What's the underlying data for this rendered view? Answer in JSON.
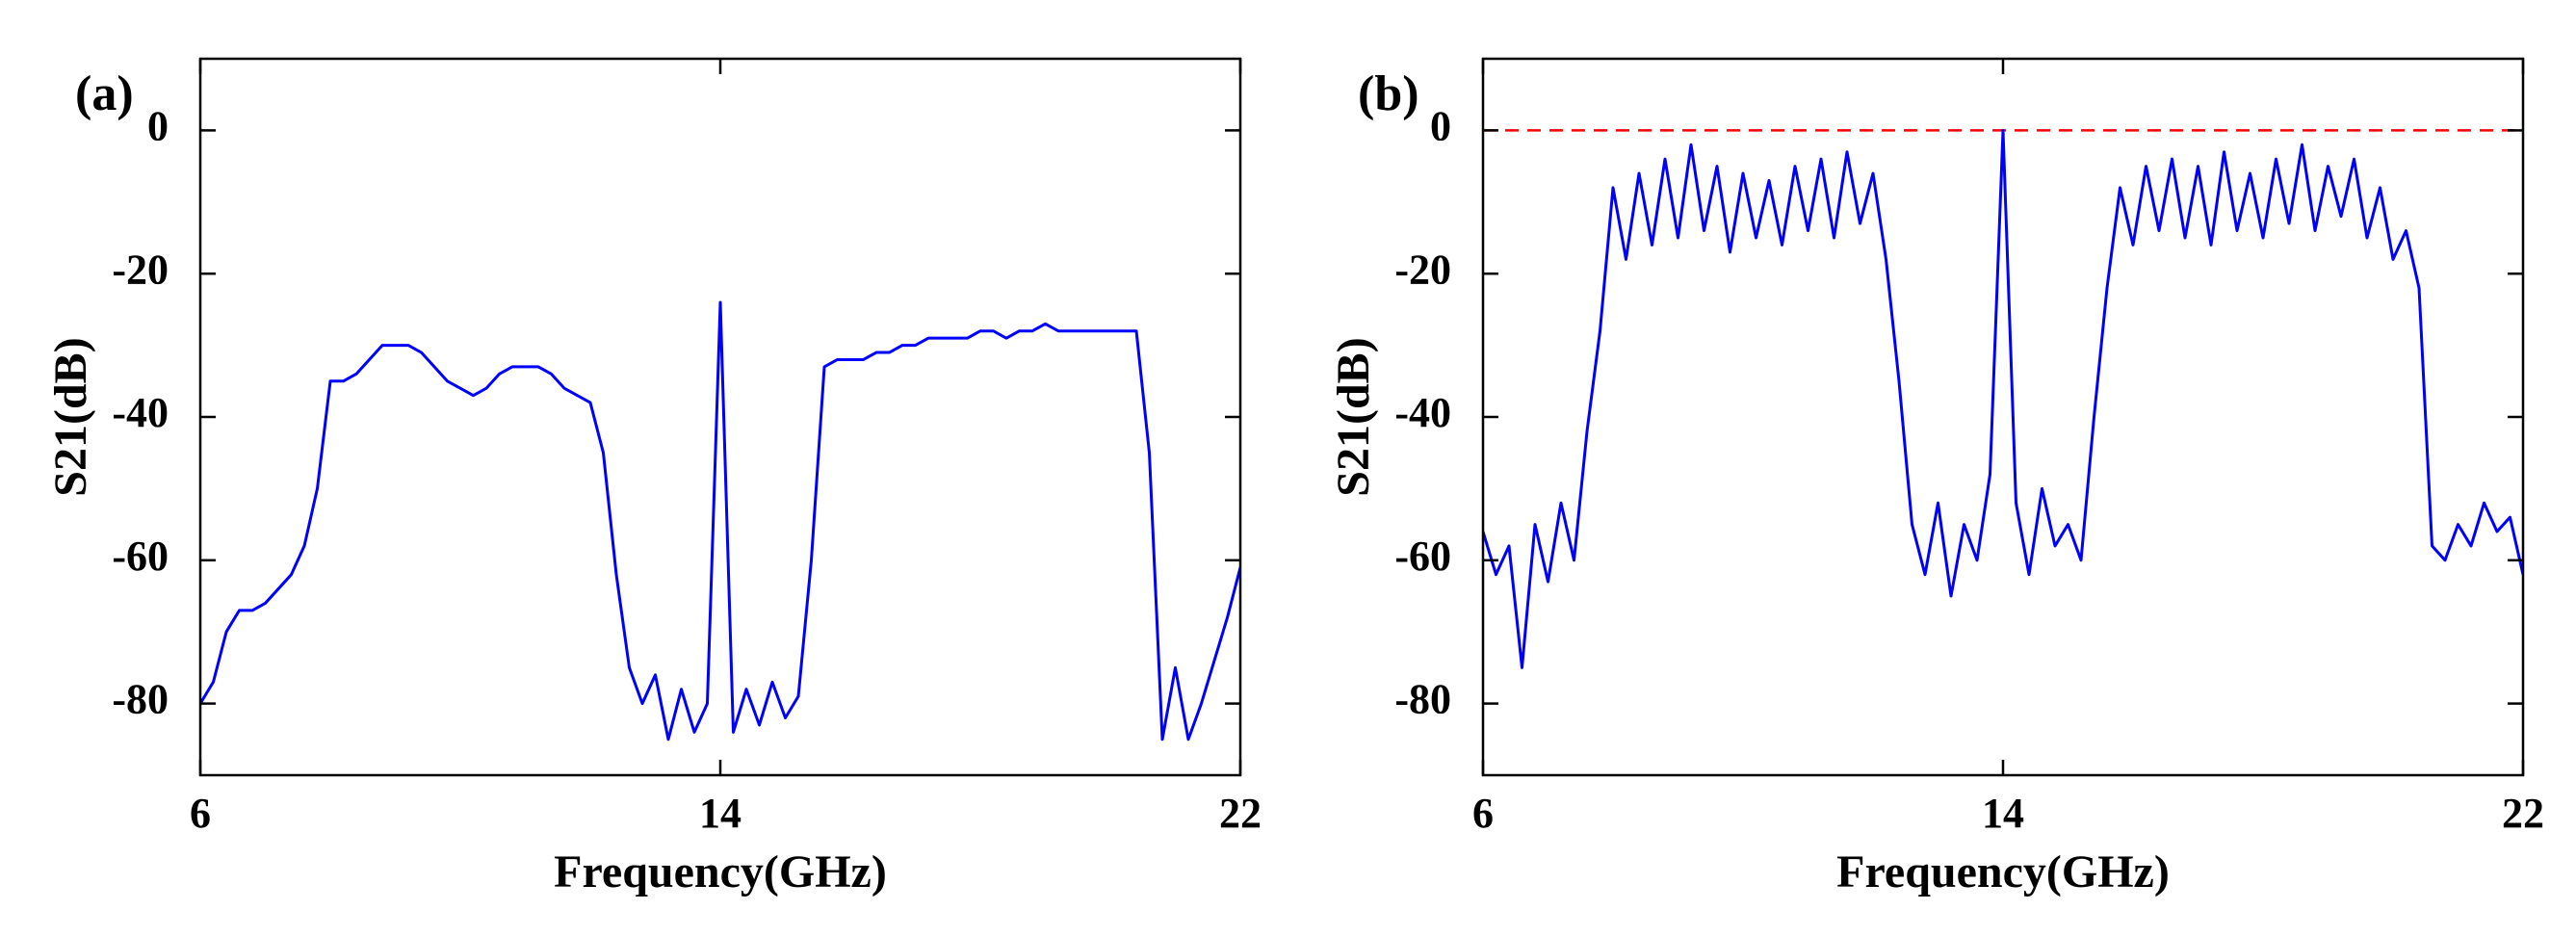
{
  "chart_data": [
    {
      "type": "line",
      "panel_label": "(a)",
      "xlabel": "Frequency(GHz)",
      "ylabel": "S21(dB)",
      "x": [
        6,
        6.2,
        6.4,
        6.6,
        6.8,
        7,
        7.2,
        7.4,
        7.6,
        7.8,
        8,
        8.2,
        8.4,
        8.6,
        8.8,
        9,
        9.2,
        9.4,
        9.6,
        9.8,
        10,
        10.2,
        10.4,
        10.6,
        10.8,
        11,
        11.2,
        11.4,
        11.6,
        11.8,
        12,
        12.2,
        12.4,
        12.6,
        12.8,
        13,
        13.2,
        13.4,
        13.6,
        13.8,
        14,
        14.2,
        14.4,
        14.6,
        14.8,
        15,
        15.2,
        15.4,
        15.6,
        15.8,
        16,
        16.2,
        16.4,
        16.6,
        16.8,
        17,
        17.2,
        17.4,
        17.6,
        17.8,
        18,
        18.2,
        18.4,
        18.6,
        18.8,
        19,
        19.2,
        19.4,
        19.6,
        19.8,
        20,
        20.2,
        20.4,
        20.6,
        20.8,
        21,
        21.2,
        21.4,
        21.6,
        21.8,
        22
      ],
      "series": [
        {
          "color": "#0000ff",
          "values": [
            -80,
            -77,
            -70,
            -67,
            -67,
            -66,
            -64,
            -62,
            -58,
            -50,
            -35,
            -35,
            -34,
            -32,
            -30,
            -30,
            -30,
            -31,
            -33,
            -35,
            -36,
            -37,
            -36,
            -34,
            -33,
            -33,
            -33,
            -34,
            -36,
            -37,
            -38,
            -45,
            -62,
            -75,
            -80,
            -76,
            -85,
            -78,
            -84,
            -80,
            -24,
            -84,
            -78,
            -83,
            -77,
            -82,
            -79,
            -60,
            -33,
            -32,
            -32,
            -32,
            -31,
            -31,
            -30,
            -30,
            -29,
            -29,
            -29,
            -29,
            -28,
            -28,
            -29,
            -28,
            -28,
            -27,
            -28,
            -28,
            -28,
            -28,
            -28,
            -28,
            -28,
            -45,
            -85,
            -75,
            -85,
            -80,
            -74,
            -68,
            -61
          ]
        }
      ],
      "xlim": [
        6,
        22
      ],
      "xticks": [
        6,
        14,
        22
      ],
      "ylim": [
        -90,
        10
      ],
      "yticks": [
        -80,
        -60,
        -40,
        -20,
        0
      ]
    },
    {
      "type": "line",
      "panel_label": "(b)",
      "xlabel": "Frequency(GHz)",
      "ylabel": "S21(dB)",
      "x": [
        6,
        6.2,
        6.4,
        6.6,
        6.8,
        7,
        7.2,
        7.4,
        7.6,
        7.8,
        8,
        8.2,
        8.4,
        8.6,
        8.8,
        9,
        9.2,
        9.4,
        9.6,
        9.8,
        10,
        10.2,
        10.4,
        10.6,
        10.8,
        11,
        11.2,
        11.4,
        11.6,
        11.8,
        12,
        12.2,
        12.4,
        12.6,
        12.8,
        13,
        13.2,
        13.4,
        13.6,
        13.8,
        14,
        14.2,
        14.4,
        14.6,
        14.8,
        15,
        15.2,
        15.4,
        15.6,
        15.8,
        16,
        16.2,
        16.4,
        16.6,
        16.8,
        17,
        17.2,
        17.4,
        17.6,
        17.8,
        18,
        18.2,
        18.4,
        18.6,
        18.8,
        19,
        19.2,
        19.4,
        19.6,
        19.8,
        20,
        20.2,
        20.4,
        20.6,
        20.8,
        21,
        21.2,
        21.4,
        21.6,
        21.8,
        22
      ],
      "series": [
        {
          "color": "#0000ff",
          "values": [
            -56,
            -62,
            -58,
            -75,
            -55,
            -63,
            -52,
            -60,
            -42,
            -28,
            -8,
            -18,
            -6,
            -16,
            -4,
            -15,
            -2,
            -14,
            -5,
            -17,
            -6,
            -15,
            -7,
            -16,
            -5,
            -14,
            -4,
            -15,
            -3,
            -13,
            -6,
            -18,
            -35,
            -55,
            -62,
            -52,
            -65,
            -55,
            -60,
            -48,
            0,
            -52,
            -62,
            -50,
            -58,
            -55,
            -60,
            -40,
            -22,
            -8,
            -16,
            -5,
            -14,
            -4,
            -15,
            -5,
            -16,
            -3,
            -14,
            -6,
            -15,
            -4,
            -13,
            -2,
            -14,
            -5,
            -12,
            -4,
            -15,
            -8,
            -18,
            -14,
            -22,
            -58,
            -60,
            -55,
            -58,
            -52,
            -56,
            -54,
            -62
          ]
        }
      ],
      "reference_line": {
        "value": 0,
        "color": "#ff0000",
        "dashed": true
      },
      "xlim": [
        6,
        22
      ],
      "xticks": [
        6,
        14,
        22
      ],
      "ylim": [
        -90,
        10
      ],
      "yticks": [
        -80,
        -60,
        -40,
        -20,
        0
      ]
    }
  ]
}
